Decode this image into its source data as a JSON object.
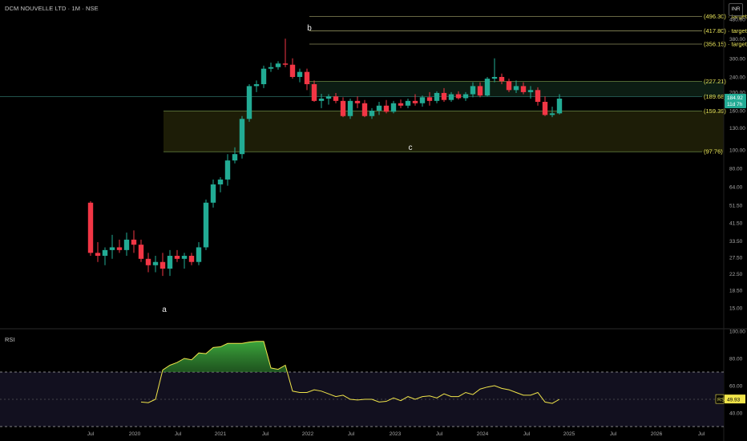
{
  "header": {
    "title": "DCM NOUVELLE LTD · 1M · NSE",
    "currency": "INR"
  },
  "rsi_panel": {
    "title": "RSI"
  },
  "colors": {
    "up": "#22ab94",
    "down": "#f23645",
    "levels": "#e8e45a",
    "rsi": "#f0e44a",
    "zone": "#2a2a0a",
    "upper_zone": "#0f2418"
  },
  "chart_data": [
    {
      "type": "candlestick",
      "title": "DCM NOUVELLE LTD · 1M · NSE",
      "y_scale": "log",
      "ylim": [
        12,
        560
      ],
      "y_ticks": [
        15.0,
        18.5,
        22.5,
        27.5,
        33.5,
        41.5,
        51.5,
        64.0,
        80.0,
        100.0,
        130.0,
        160.0,
        200.0,
        240.0,
        300.0,
        380.0,
        480.0
      ],
      "x_labels": [
        "Jul",
        "2020",
        "Jul",
        "2021",
        "Jul",
        "2022",
        "Jul",
        "2023",
        "Jul",
        "2024",
        "Jul",
        "2025",
        "Jul",
        "2026",
        "Jul"
      ],
      "last_price": "184.92",
      "countdown": "11d 7h",
      "levels": [
        {
          "price": 496.3,
          "label": "(496.30) · target 3"
        },
        {
          "price": 417.8,
          "label": "(417.80) · target 2"
        },
        {
          "price": 356.15,
          "label": "(356.15) · target 1"
        },
        {
          "price": 227.21,
          "label": "(227.21)"
        },
        {
          "price": 189.68,
          "label": "(189.68)"
        },
        {
          "price": 159.39,
          "label": "(159.39)"
        },
        {
          "price": 97.76,
          "label": "(97.76)"
        }
      ],
      "wave_labels": [
        "a",
        "b",
        "c"
      ],
      "candles": [
        [
          53,
          54,
          28,
          29
        ],
        [
          29,
          33,
          26,
          28
        ],
        [
          28,
          31,
          25,
          30
        ],
        [
          30,
          36,
          27,
          31
        ],
        [
          31,
          34,
          29,
          30
        ],
        [
          30,
          37,
          28,
          34
        ],
        [
          34,
          38,
          29,
          32
        ],
        [
          32,
          34,
          26,
          27
        ],
        [
          27,
          29,
          23,
          25
        ],
        [
          25,
          28,
          23,
          26
        ],
        [
          26,
          29,
          22,
          24
        ],
        [
          24,
          30,
          22,
          28
        ],
        [
          28,
          30,
          26,
          27
        ],
        [
          27,
          29,
          24,
          28
        ],
        [
          28,
          29,
          25,
          26
        ],
        [
          26,
          33,
          25,
          31
        ],
        [
          31,
          55,
          30,
          53
        ],
        [
          53,
          70,
          50,
          66
        ],
        [
          66,
          72,
          60,
          70
        ],
        [
          70,
          95,
          65,
          88
        ],
        [
          88,
          103,
          85,
          95
        ],
        [
          95,
          150,
          90,
          145
        ],
        [
          145,
          220,
          140,
          215
        ],
        [
          215,
          230,
          200,
          220
        ],
        [
          220,
          275,
          210,
          265
        ],
        [
          265,
          285,
          255,
          270
        ],
        [
          270,
          290,
          262,
          282
        ],
        [
          282,
          380,
          270,
          278
        ],
        [
          278,
          300,
          235,
          240
        ],
        [
          240,
          265,
          225,
          255
        ],
        [
          255,
          265,
          205,
          220
        ],
        [
          220,
          230,
          178,
          180
        ],
        [
          180,
          196,
          165,
          185
        ],
        [
          185,
          195,
          172,
          190
        ],
        [
          190,
          198,
          175,
          180
        ],
        [
          180,
          188,
          148,
          150
        ],
        [
          150,
          185,
          145,
          180
        ],
        [
          180,
          190,
          165,
          175
        ],
        [
          175,
          182,
          148,
          150
        ],
        [
          150,
          165,
          145,
          160
        ],
        [
          160,
          178,
          152,
          170
        ],
        [
          170,
          182,
          155,
          158
        ],
        [
          158,
          180,
          155,
          175
        ],
        [
          175,
          183,
          165,
          170
        ],
        [
          170,
          185,
          165,
          180
        ],
        [
          180,
          195,
          170,
          175
        ],
        [
          175,
          192,
          168,
          188
        ],
        [
          188,
          200,
          170,
          180
        ],
        [
          180,
          202,
          175,
          198
        ],
        [
          198,
          210,
          178,
          182
        ],
        [
          182,
          200,
          178,
          195
        ],
        [
          195,
          202,
          183,
          186
        ],
        [
          186,
          200,
          180,
          195
        ],
        [
          195,
          225,
          188,
          215
        ],
        [
          215,
          225,
          188,
          192
        ],
        [
          192,
          240,
          190,
          235
        ],
        [
          235,
          300,
          225,
          240
        ],
        [
          240,
          250,
          220,
          228
        ],
        [
          228,
          235,
          200,
          205
        ],
        [
          205,
          230,
          198,
          215
        ],
        [
          215,
          225,
          195,
          200
        ],
        [
          200,
          215,
          185,
          205
        ],
        [
          205,
          212,
          170,
          178
        ],
        [
          178,
          190,
          150,
          152
        ],
        [
          152,
          168,
          148,
          155
        ],
        [
          155,
          195,
          153,
          185
        ]
      ]
    },
    {
      "type": "line",
      "title": "RSI",
      "ylim": [
        30,
        100
      ],
      "y_ticks": [
        40.0,
        60.0,
        80.0,
        100.0
      ],
      "band": [
        30,
        70
      ],
      "last_value": "49.93",
      "values": [
        48,
        47.5,
        50,
        71.5,
        75,
        77,
        80,
        79,
        84,
        83.5,
        88,
        88.5,
        91,
        91,
        91,
        92,
        92.5,
        92.5,
        73,
        72,
        75,
        56,
        55,
        55,
        57,
        56,
        54,
        52,
        53,
        50,
        49.5,
        50,
        50,
        48,
        48.5,
        51,
        49,
        52,
        50,
        52,
        52.5,
        51,
        54,
        52,
        52,
        55,
        53.5,
        57.5,
        59,
        60,
        58,
        57,
        55,
        53,
        53,
        55,
        48,
        47,
        50
      ]
    }
  ]
}
